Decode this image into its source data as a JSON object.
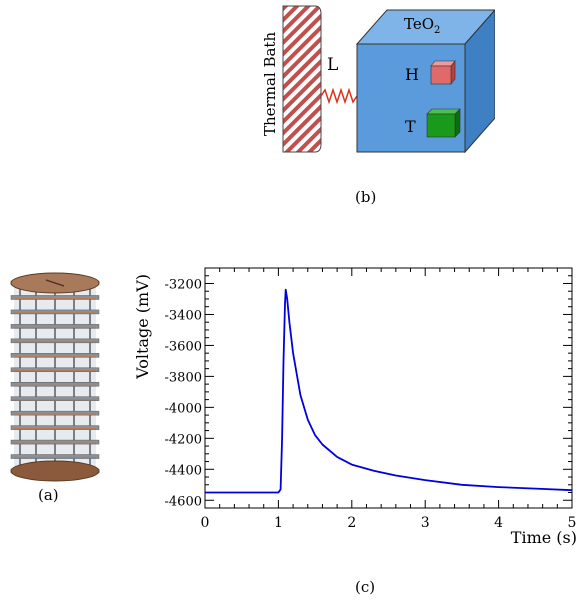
{
  "captions": {
    "a": "(a)",
    "b": "(b)",
    "c": "(c)"
  },
  "diagram": {
    "bath_label": "Thermal Bath",
    "link_label": "L",
    "crystal_label": "TeO",
    "crystal_subscript": "2",
    "heater_label": "H",
    "thermistor_label": "T",
    "colors": {
      "crystal_front": "#5b9bdc",
      "crystal_top": "#7fb4e8",
      "crystal_side": "#3f7fc4",
      "heater": "#e06a6a",
      "thermistor": "#1a9a1a",
      "spring": "#e0301e",
      "bath_hatch": "#c0504d"
    }
  },
  "tower": {
    "floors": 13,
    "icon": "crystal-tower-illustration"
  },
  "chart_data": {
    "type": "line",
    "xlabel": "Time (s)",
    "ylabel": "Voltage (mV)",
    "xlim": [
      0,
      5
    ],
    "ylim": [
      -4650,
      -3100
    ],
    "xticks": [
      0,
      1,
      2,
      3,
      4,
      5
    ],
    "yticks": [
      -4600,
      -4400,
      -4200,
      -4000,
      -3800,
      -3600,
      -3400,
      -3200
    ],
    "line_color": "#0000dd",
    "series": [
      {
        "x": [
          0,
          0.5,
          1.0,
          1.03,
          1.05,
          1.07,
          1.09,
          1.1,
          1.12,
          1.15,
          1.2,
          1.3,
          1.4,
          1.5,
          1.6,
          1.8,
          2.0,
          2.3,
          2.6,
          3.0,
          3.5,
          4.0,
          4.5,
          5.0
        ],
        "y": [
          -4550,
          -4550,
          -4550,
          -4530,
          -4200,
          -3700,
          -3330,
          -3240,
          -3300,
          -3450,
          -3650,
          -3920,
          -4080,
          -4180,
          -4240,
          -4320,
          -4370,
          -4410,
          -4440,
          -4470,
          -4500,
          -4515,
          -4525,
          -4535
        ]
      }
    ]
  }
}
